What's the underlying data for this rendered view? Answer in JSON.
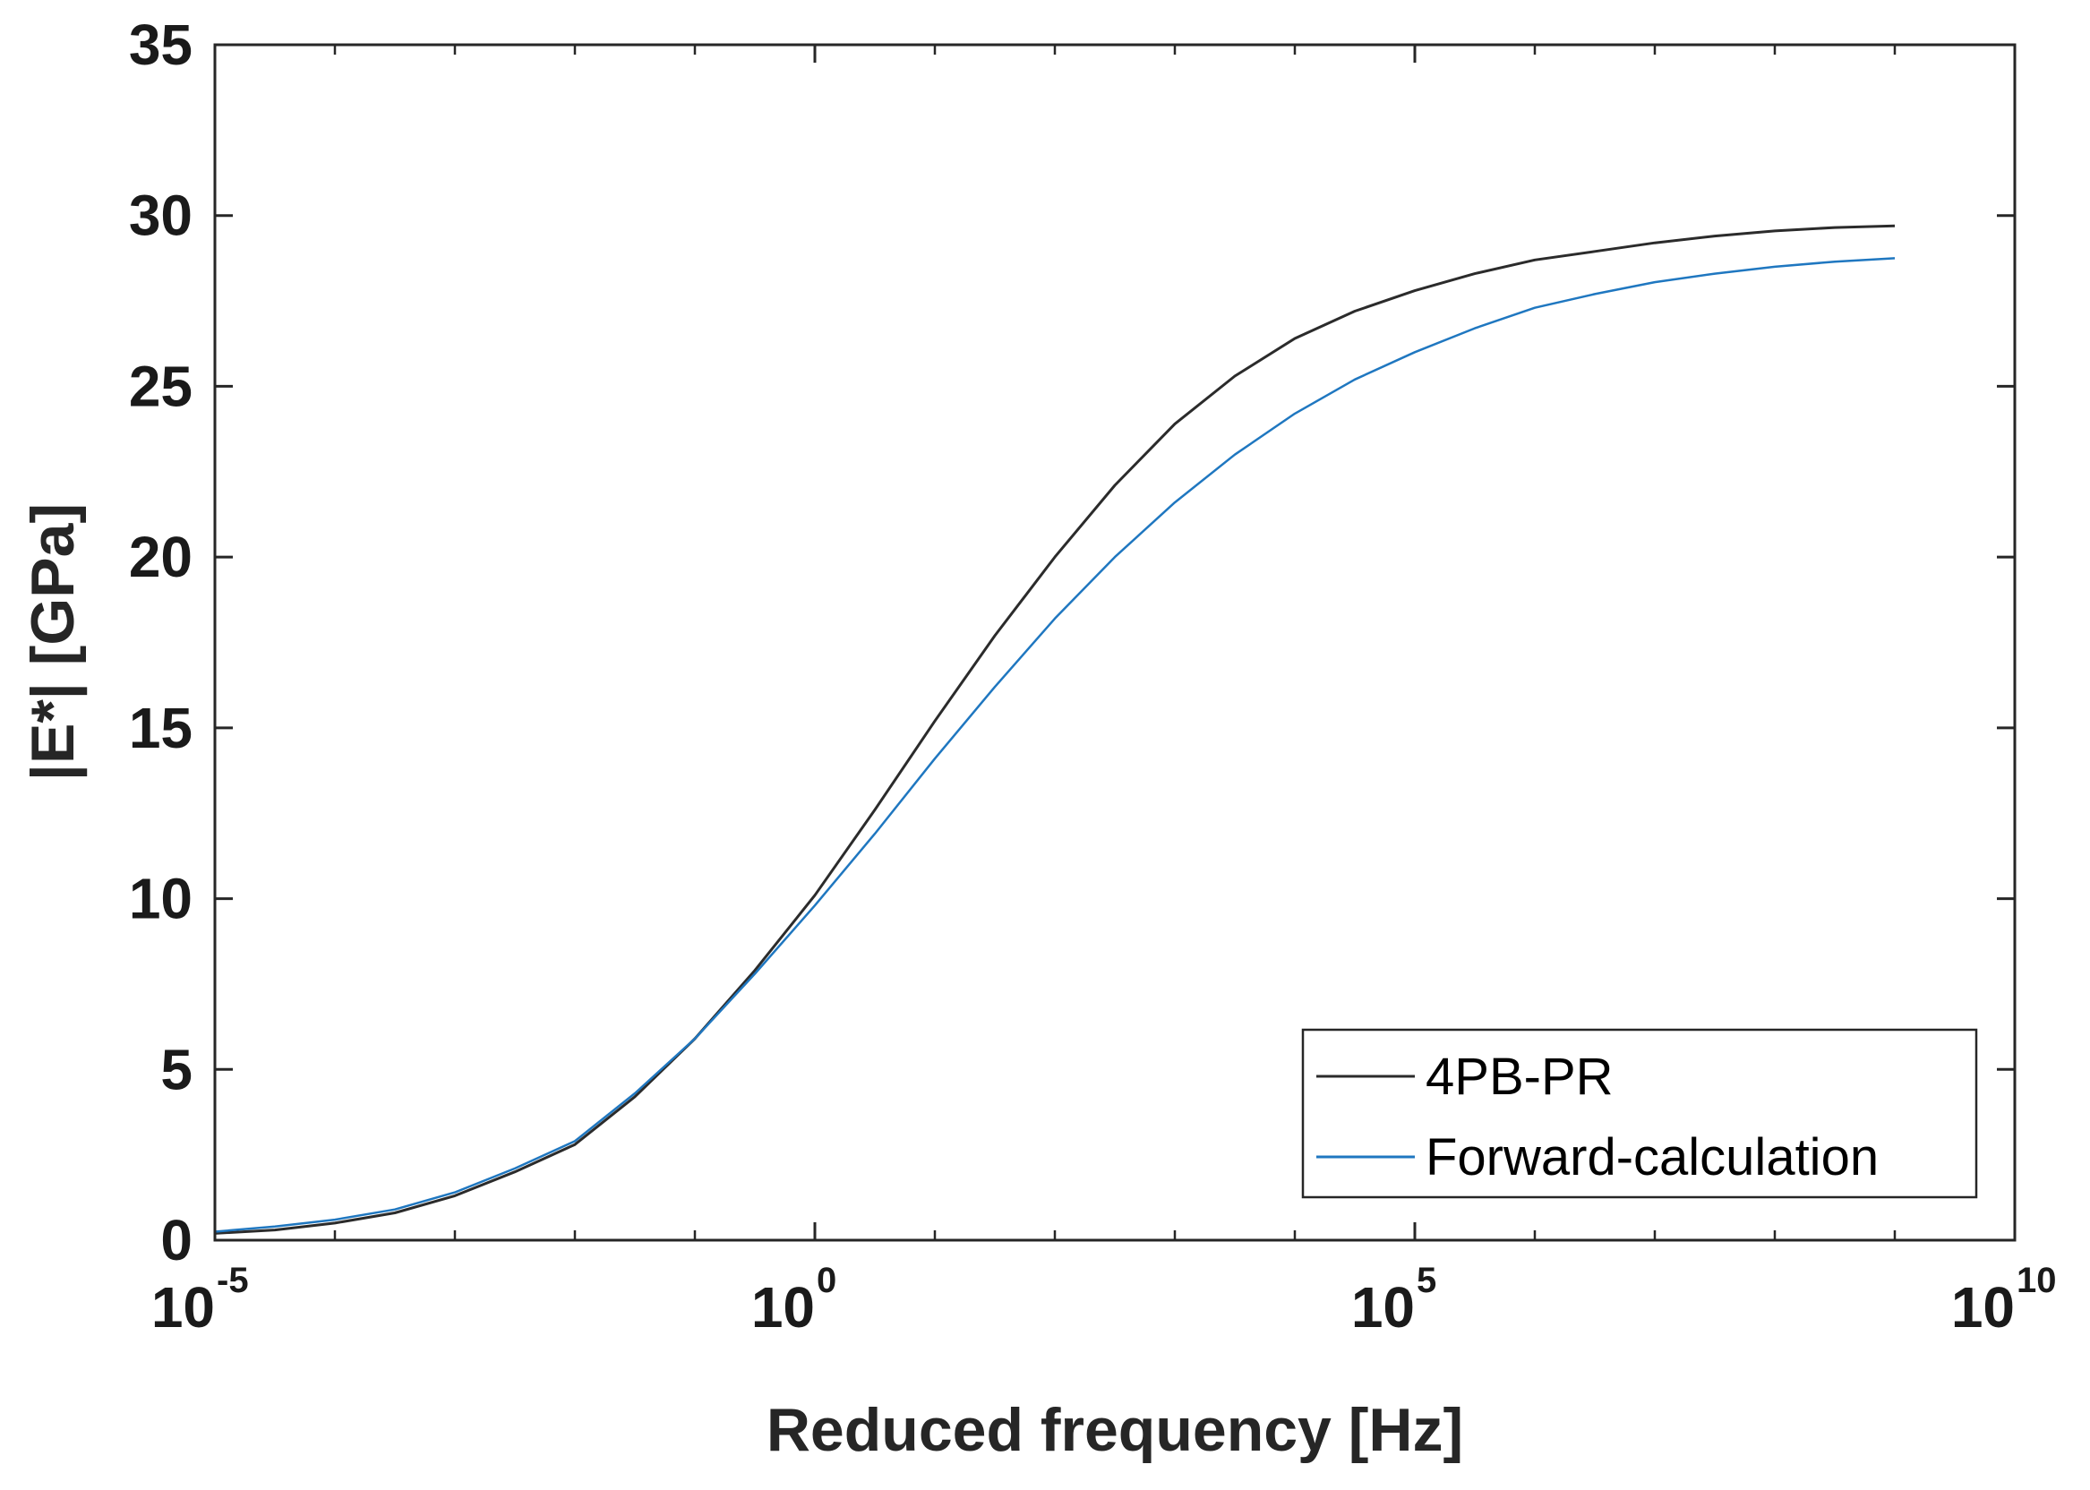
{
  "chart_data": {
    "type": "line",
    "title": "",
    "xlabel": "Reduced frequency [Hz]",
    "ylabel": "|E*| [GPa]",
    "xscale": "log",
    "xlim_exp": [
      -5,
      10
    ],
    "ylim": [
      0,
      35
    ],
    "x_ticks": [
      {
        "base": "10",
        "exp": "-5",
        "value_exp": -5
      },
      {
        "base": "10",
        "exp": "0",
        "value_exp": 0
      },
      {
        "base": "10",
        "exp": "5",
        "value_exp": 5
      },
      {
        "base": "10",
        "exp": "10",
        "value_exp": 10
      }
    ],
    "y_ticks": [
      {
        "label": "0",
        "value": 0
      },
      {
        "label": "5",
        "value": 5
      },
      {
        "label": "10",
        "value": 10
      },
      {
        "label": "15",
        "value": 15
      },
      {
        "label": "20",
        "value": 20
      },
      {
        "label": "25",
        "value": 25
      },
      {
        "label": "30",
        "value": 30
      },
      {
        "label": "35",
        "value": 35
      }
    ],
    "grid": false,
    "legend_position": "bottom-right",
    "series": [
      {
        "name": "4PB-PR",
        "color": "#2b2b2b",
        "x_log10": [
          -5,
          -4.5,
          -4,
          -3.5,
          -3,
          -2.5,
          -2,
          -1.5,
          -1,
          -0.5,
          0,
          0.5,
          1,
          1.5,
          2,
          2.5,
          3,
          3.5,
          4,
          4.5,
          5,
          5.5,
          6,
          6.5,
          7,
          7.5,
          8,
          8.5,
          9
        ],
        "y": [
          0.2,
          0.3,
          0.5,
          0.8,
          1.3,
          2.0,
          2.8,
          4.2,
          5.9,
          7.9,
          10.1,
          12.6,
          15.2,
          17.7,
          20.0,
          22.1,
          23.9,
          25.3,
          26.4,
          27.2,
          27.8,
          28.3,
          28.7,
          28.95,
          29.2,
          29.4,
          29.55,
          29.65,
          29.7
        ]
      },
      {
        "name": "Forward-calculation",
        "color": "#1f77c0",
        "x_log10": [
          -5,
          -4.5,
          -4,
          -3.5,
          -3,
          -2.5,
          -2,
          -1.5,
          -1,
          -0.5,
          0,
          0.5,
          1,
          1.5,
          2,
          2.5,
          3,
          3.5,
          4,
          4.5,
          5,
          5.5,
          6,
          6.5,
          7,
          7.5,
          8,
          8.5,
          9
        ],
        "y": [
          0.25,
          0.4,
          0.6,
          0.9,
          1.4,
          2.1,
          2.9,
          4.3,
          5.9,
          7.8,
          9.8,
          11.9,
          14.1,
          16.2,
          18.2,
          20.0,
          21.6,
          23.0,
          24.2,
          25.2,
          26.0,
          26.7,
          27.3,
          27.7,
          28.05,
          28.3,
          28.5,
          28.65,
          28.75
        ]
      }
    ]
  }
}
